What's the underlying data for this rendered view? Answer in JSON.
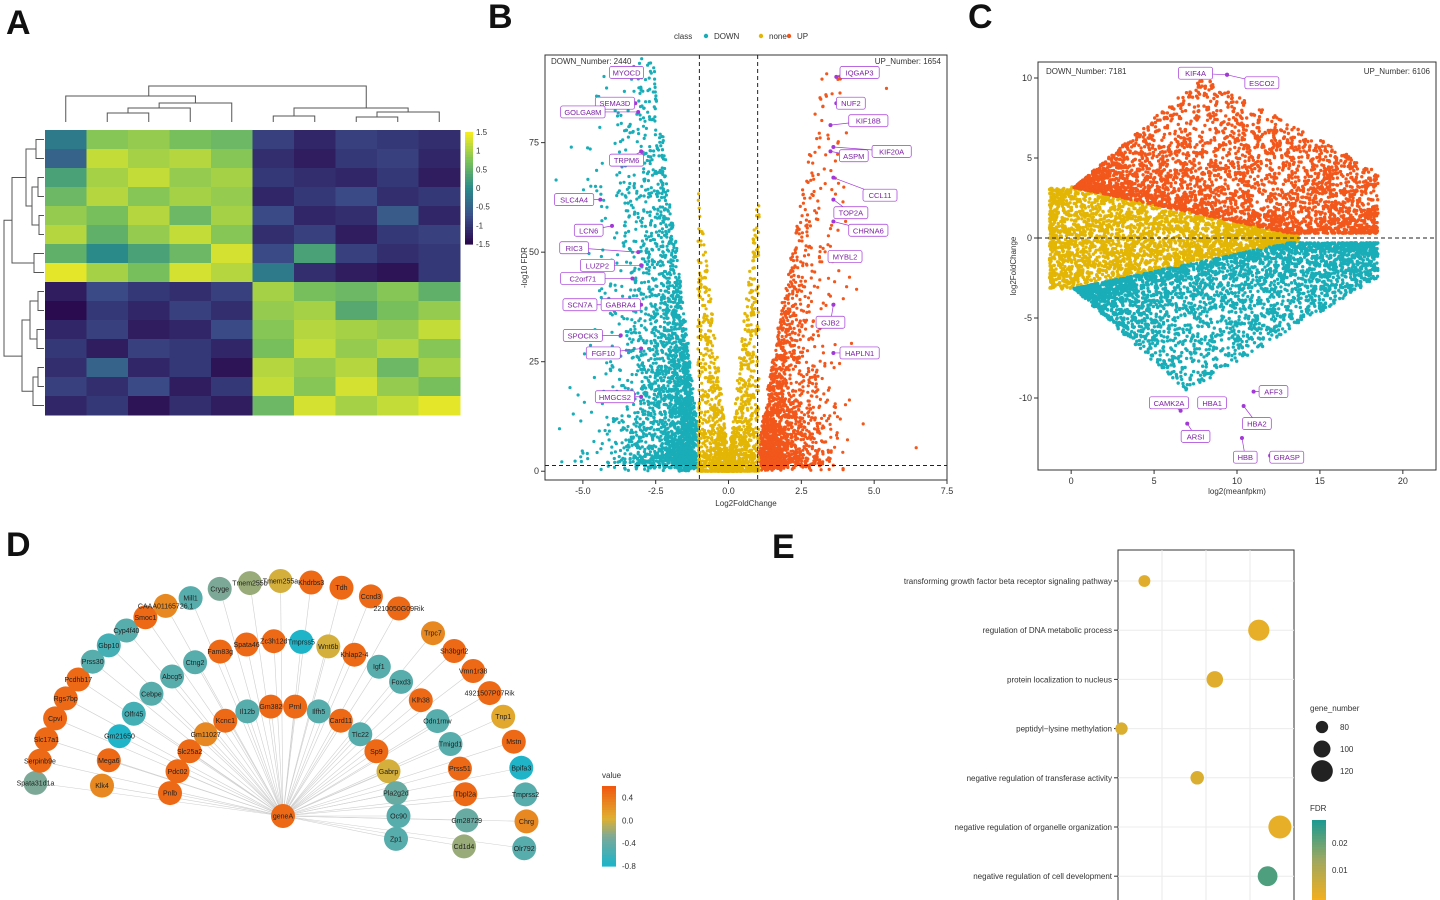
{
  "panels": {
    "A": "A",
    "B": "B",
    "C": "C",
    "D": "D",
    "E": "E"
  },
  "colors": {
    "down": "#19adb8",
    "none": "#e3b505",
    "up": "#f2571b",
    "label": "#a238d6",
    "hmLow": "#2a0b4f",
    "hmHigh": "#f4ec21"
  },
  "chart_data": [
    {
      "panel": "A",
      "type": "heatmap",
      "legend_ticks": [
        "1.5",
        "1",
        "0.5",
        "0",
        "-0.5",
        "-1",
        "-1.5"
      ],
      "color_range": [
        -1.5,
        1.5
      ],
      "matrix": [
        [
          -0.2,
          0.8,
          0.9,
          0.7,
          0.6,
          -0.9,
          -1.2,
          -0.9,
          -1.0,
          -1.1
        ],
        [
          -0.5,
          1.2,
          1.0,
          1.1,
          0.8,
          -1.1,
          -1.3,
          -1.0,
          -0.9,
          -1.2
        ],
        [
          0.3,
          1.0,
          1.2,
          0.9,
          1.0,
          -1.0,
          -1.1,
          -1.2,
          -1.0,
          -1.3
        ],
        [
          0.6,
          1.1,
          0.8,
          1.0,
          0.9,
          -1.2,
          -1.0,
          -0.8,
          -1.1,
          -1.0
        ],
        [
          0.9,
          0.7,
          1.1,
          0.6,
          1.0,
          -0.8,
          -1.2,
          -1.1,
          -0.6,
          -1.2
        ],
        [
          1.1,
          0.5,
          0.9,
          1.2,
          0.8,
          -1.1,
          -0.9,
          -1.3,
          -1.0,
          -0.9
        ],
        [
          0.5,
          0.0,
          0.3,
          0.6,
          1.3,
          -0.8,
          0.3,
          -0.9,
          -1.1,
          -1.0
        ],
        [
          1.4,
          1.0,
          0.7,
          1.3,
          1.1,
          -0.2,
          -1.1,
          -1.3,
          -1.4,
          -1.0
        ],
        [
          -1.3,
          -0.8,
          -1.0,
          -1.1,
          -0.9,
          1.0,
          0.7,
          0.6,
          0.8,
          0.5
        ],
        [
          -1.5,
          -1.0,
          -1.2,
          -0.9,
          -1.1,
          0.9,
          1.0,
          0.4,
          0.7,
          0.9
        ],
        [
          -1.2,
          -0.9,
          -1.3,
          -1.2,
          -0.8,
          0.8,
          1.1,
          1.0,
          0.9,
          1.2
        ],
        [
          -1.0,
          -1.3,
          -0.9,
          -1.0,
          -1.2,
          0.7,
          1.2,
          0.9,
          1.1,
          0.8
        ],
        [
          -1.1,
          -0.5,
          -1.2,
          -1.0,
          -1.4,
          1.1,
          0.9,
          1.1,
          0.6,
          1.0
        ],
        [
          -0.9,
          -1.1,
          -0.8,
          -1.3,
          -1.0,
          1.2,
          0.8,
          1.3,
          0.9,
          0.7
        ],
        [
          -1.2,
          -1.0,
          -1.4,
          -1.1,
          -1.3,
          0.6,
          1.3,
          1.0,
          1.2,
          1.4
        ]
      ]
    },
    {
      "panel": "B",
      "type": "scatter",
      "legend_title": "class",
      "legend_items": [
        "DOWN",
        "none",
        "UP"
      ],
      "xlabel": "Log2FoldChange",
      "ylabel": "-log10 FDR",
      "xlim": [
        -6.3,
        7.5
      ],
      "ylim": [
        -2,
        95
      ],
      "xticks": [
        -5.0,
        -2.5,
        0.0,
        2.5,
        5.0,
        7.5
      ],
      "xtick_labels": [
        "-5.0",
        "-2.5",
        "0.0",
        "2.5",
        "5.0",
        "7.5"
      ],
      "yticks": [
        0,
        25,
        50,
        75
      ],
      "ytick_labels": [
        "0",
        "25",
        "50",
        "75"
      ],
      "fc_cut": 1,
      "fdr_cut": 1.3,
      "down_number": "DOWN_Number: 2440",
      "up_number": "UP_Number: 1654",
      "labels": [
        {
          "gene": "MYOCD",
          "x": -3.0,
          "y": 90,
          "lx": -3.5,
          "ly": 91
        },
        {
          "gene": "SEMA3D",
          "x": -3.2,
          "y": 84,
          "lx": -3.9,
          "ly": 84
        },
        {
          "gene": "GOLGA8M",
          "x": -3.1,
          "y": 82,
          "lx": -5.0,
          "ly": 82
        },
        {
          "gene": "TRPM6",
          "x": -3.0,
          "y": 73,
          "lx": -3.5,
          "ly": 71
        },
        {
          "gene": "SLC4A4",
          "x": -4.4,
          "y": 62,
          "lx": -5.3,
          "ly": 62
        },
        {
          "gene": "LCN6",
          "x": -4.0,
          "y": 56,
          "lx": -4.8,
          "ly": 55
        },
        {
          "gene": "RIC3",
          "x": -3.1,
          "y": 50,
          "lx": -5.3,
          "ly": 51
        },
        {
          "gene": "LUZP2",
          "x": -3.0,
          "y": 47,
          "lx": -4.5,
          "ly": 47
        },
        {
          "gene": "C2orf71",
          "x": -3.3,
          "y": 44,
          "lx": -5.0,
          "ly": 44
        },
        {
          "gene": "SCN7A",
          "x": -3.9,
          "y": 38,
          "lx": -5.1,
          "ly": 38
        },
        {
          "gene": "GABRA4",
          "x": -3.0,
          "y": 38,
          "lx": -3.7,
          "ly": 38
        },
        {
          "gene": "SPOCK3",
          "x": -3.7,
          "y": 31,
          "lx": -5.0,
          "ly": 31
        },
        {
          "gene": "FGF10",
          "x": -3.0,
          "y": 28,
          "lx": -4.3,
          "ly": 27
        },
        {
          "gene": "HMGCS2",
          "x": -3.0,
          "y": 17,
          "lx": -3.9,
          "ly": 17
        },
        {
          "gene": "IQGAP3",
          "x": 3.7,
          "y": 90,
          "lx": 4.5,
          "ly": 91
        },
        {
          "gene": "NUF2",
          "x": 3.7,
          "y": 84,
          "lx": 4.2,
          "ly": 84
        },
        {
          "gene": "KIF18B",
          "x": 3.5,
          "y": 79,
          "lx": 4.8,
          "ly": 80
        },
        {
          "gene": "ASPM",
          "x": 3.5,
          "y": 73,
          "lx": 4.3,
          "ly": 72
        },
        {
          "gene": "KIF20A",
          "x": 3.6,
          "y": 74,
          "lx": 5.6,
          "ly": 73
        },
        {
          "gene": "CCL11",
          "x": 3.6,
          "y": 67,
          "lx": 5.2,
          "ly": 63
        },
        {
          "gene": "TOP2A",
          "x": 3.6,
          "y": 62,
          "lx": 4.2,
          "ly": 59
        },
        {
          "gene": "CHRNA6",
          "x": 3.6,
          "y": 57,
          "lx": 4.8,
          "ly": 55
        },
        {
          "gene": "MYBL2",
          "x": 3.5,
          "y": 49,
          "lx": 4.0,
          "ly": 49
        },
        {
          "gene": "GJB2",
          "x": 3.6,
          "y": 38,
          "lx": 3.5,
          "ly": 34
        },
        {
          "gene": "HAPLN1",
          "x": 3.6,
          "y": 27,
          "lx": 4.5,
          "ly": 27
        }
      ]
    },
    {
      "panel": "C",
      "type": "scatter",
      "xlabel": "log2(meanfpkm)",
      "ylabel": "log2FoldChange",
      "xlim": [
        -2,
        22
      ],
      "ylim": [
        -14.5,
        11
      ],
      "xticks": [
        0,
        5,
        10,
        15,
        20
      ],
      "xtick_labels": [
        "0",
        "5",
        "10",
        "15",
        "20"
      ],
      "yticks": [
        10,
        5,
        0,
        -5,
        -10
      ],
      "ytick_labels": [
        "10",
        "5",
        "0",
        "-5",
        "-10"
      ],
      "down_number": "DOWN_Number: 7181",
      "up_number": "UP_Number: 6106",
      "labels": [
        {
          "gene": "KIF4A",
          "x": 9.4,
          "y": 10.2,
          "lx": 7.5,
          "ly": 10.3
        },
        {
          "gene": "ESCO2",
          "x": 9.4,
          "y": 10.2,
          "lx": 11.5,
          "ly": 9.7
        },
        {
          "gene": "AFF3",
          "x": 11.0,
          "y": -9.6,
          "lx": 12.2,
          "ly": -9.6
        },
        {
          "gene": "HBA1",
          "x": 9.0,
          "y": -10.6,
          "lx": 8.5,
          "ly": -10.3
        },
        {
          "gene": "CAMK2A",
          "x": 6.6,
          "y": -10.8,
          "lx": 5.9,
          "ly": -10.3
        },
        {
          "gene": "HBA2",
          "x": 10.4,
          "y": -10.5,
          "lx": 11.2,
          "ly": -11.6
        },
        {
          "gene": "ARSI",
          "x": 7.0,
          "y": -11.6,
          "lx": 7.5,
          "ly": -12.4
        },
        {
          "gene": "HBB",
          "x": 10.3,
          "y": -12.5,
          "lx": 10.5,
          "ly": -13.7
        },
        {
          "gene": "GRASP",
          "x": 12.0,
          "y": -13.6,
          "lx": 13.0,
          "ly": -13.7
        }
      ]
    },
    {
      "panel": "D",
      "type": "network",
      "center": {
        "name": "geneA",
        "value": 0.5
      },
      "legend_title": "value",
      "legend_ticks": [
        "0.4",
        "0.0",
        "-0.4",
        "-0.8"
      ],
      "color_range": [
        -0.8,
        0.6
      ],
      "nodes": [
        {
          "name": "Mill1",
          "value": -0.5
        },
        {
          "name": "Cryge",
          "value": -0.3
        },
        {
          "name": "Tmem255b",
          "value": -0.2
        },
        {
          "name": "Tmem255a",
          "value": 0.0
        },
        {
          "name": "Khdrbs3",
          "value": 0.5
        },
        {
          "name": "Tdh",
          "value": 0.5
        },
        {
          "name": "Ccnd3",
          "value": 0.5
        },
        {
          "name": "2210050G09Rik",
          "value": 0.5
        },
        {
          "name": "Trpc7",
          "value": 0.3
        },
        {
          "name": "Sh3bgrl2",
          "value": 0.5
        },
        {
          "name": "Vmn1r38",
          "value": 0.5
        },
        {
          "name": "4921507P07Rik",
          "value": 0.5
        },
        {
          "name": "Tnp1",
          "value": 0.1
        },
        {
          "name": "Mstn",
          "value": 0.5
        },
        {
          "name": "Bpifa3",
          "value": -0.8
        },
        {
          "name": "Tmprss2",
          "value": -0.5
        },
        {
          "name": "Chrg",
          "value": 0.3
        },
        {
          "name": "Olr792",
          "value": -0.5
        },
        {
          "name": "Spata31d1a",
          "value": -0.3
        },
        {
          "name": "Serpinb9e",
          "value": 0.5
        },
        {
          "name": "Slc17a1",
          "value": 0.5
        },
        {
          "name": "Cpvl",
          "value": 0.5
        },
        {
          "name": "Rgs7bp",
          "value": 0.5
        },
        {
          "name": "Pcdhb17",
          "value": 0.5
        },
        {
          "name": "Prss30",
          "value": -0.5
        },
        {
          "name": "Gbp10",
          "value": -0.6
        },
        {
          "name": "Cyp4f40",
          "value": -0.5
        },
        {
          "name": "Smoc1",
          "value": 0.5
        },
        {
          "name": "CAAA01165726.1",
          "value": 0.3
        },
        {
          "name": "Klk4",
          "value": 0.3
        },
        {
          "name": "Mega6",
          "value": 0.5
        },
        {
          "name": "Gm21650",
          "value": -0.8
        },
        {
          "name": "Olfr45",
          "value": -0.6
        },
        {
          "name": "Cebpe",
          "value": -0.5
        },
        {
          "name": "Abcg5",
          "value": -0.5
        },
        {
          "name": "Ctng2",
          "value": -0.5
        },
        {
          "name": "Fam83g",
          "value": 0.5
        },
        {
          "name": "Spata46",
          "value": 0.5
        },
        {
          "name": "Zc3h12d",
          "value": 0.5
        },
        {
          "name": "Tmprss5",
          "value": -0.8
        },
        {
          "name": "Wnt6b",
          "value": 0.0
        },
        {
          "name": "Khlap2-4",
          "value": 0.5
        },
        {
          "name": "Igf1",
          "value": -0.5
        },
        {
          "name": "Foxd3",
          "value": -0.5
        },
        {
          "name": "Klh38",
          "value": 0.5
        },
        {
          "name": "Odn1rnw",
          "value": -0.5
        },
        {
          "name": "Tmigd1",
          "value": -0.5
        },
        {
          "name": "Prss51",
          "value": 0.5
        },
        {
          "name": "Tbpl2a",
          "value": 0.5
        },
        {
          "name": "Gm28729",
          "value": -0.4
        },
        {
          "name": "Cd1d4",
          "value": -0.2
        },
        {
          "name": "Pnlb",
          "value": 0.5
        },
        {
          "name": "Pdc02",
          "value": 0.5
        },
        {
          "name": "Slc25a2",
          "value": 0.5
        },
        {
          "name": "Gm11027",
          "value": 0.3
        },
        {
          "name": "Kcnc1",
          "value": 0.5
        },
        {
          "name": "Il12b",
          "value": -0.5
        },
        {
          "name": "Gm382",
          "value": 0.5
        },
        {
          "name": "Prnl",
          "value": 0.5
        },
        {
          "name": "Ilfh5",
          "value": -0.5
        },
        {
          "name": "Card11",
          "value": 0.5
        },
        {
          "name": "Tlc22",
          "value": -0.5
        },
        {
          "name": "Sp9",
          "value": 0.5
        },
        {
          "name": "Gabrp",
          "value": 0.0
        },
        {
          "name": "Pla2g2d",
          "value": -0.4
        },
        {
          "name": "Oc90",
          "value": -0.5
        },
        {
          "name": "Zp1",
          "value": -0.5
        }
      ]
    },
    {
      "panel": "E",
      "type": "bubble",
      "terms": [
        "transforming growth factor beta receptor signaling pathway",
        "regulation of DNA metabolic process",
        "protein localization to nucleus",
        "peptidyl−lysine methylation",
        "negative regulation of transferase activity",
        "negative regulation of organelle organization",
        "negative regulation of cell development"
      ],
      "x": [
        0.15,
        0.8,
        0.55,
        0.02,
        0.45,
        0.92,
        0.85
      ],
      "gene_number": [
        78,
        118,
        98,
        80,
        85,
        126,
        112
      ],
      "fdr": [
        0.005,
        0.004,
        0.005,
        0.006,
        0.006,
        0.004,
        0.025
      ],
      "size_legend_title": "gene_number",
      "size_legend_ticks": [
        "80",
        "100",
        "120"
      ],
      "color_legend_title": "FDR",
      "color_legend_ticks": [
        "0.02",
        "0.01"
      ],
      "fdr_range": [
        0.002,
        0.03
      ]
    }
  ]
}
